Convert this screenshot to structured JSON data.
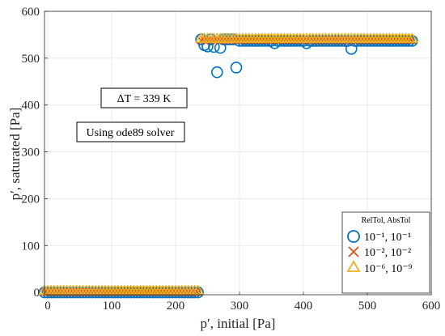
{
  "chart_data": {
    "type": "scatter",
    "xlabel": "p′, initial [Pa]",
    "ylabel": "p′, saturated [Pa]",
    "xlim": [
      -5,
      600
    ],
    "ylim": [
      -5,
      600
    ],
    "xticks": [
      0,
      100,
      200,
      300,
      400,
      500,
      600
    ],
    "yticks": [
      0,
      100,
      200,
      300,
      400,
      500,
      600
    ],
    "grid": true,
    "legend_position": "bottom-right",
    "legend_title": "RelTol,   AbsTol",
    "annotations": [
      "ΔT = 339 K",
      "Using ode89 solver"
    ],
    "series": [
      {
        "name": "10⁻¹, 10⁻¹",
        "marker": "circle",
        "color": "#0072BD",
        "x": [
          -5,
          0,
          5,
          10,
          15,
          20,
          25,
          30,
          35,
          40,
          45,
          50,
          55,
          60,
          65,
          70,
          75,
          80,
          85,
          90,
          95,
          100,
          105,
          110,
          115,
          120,
          125,
          130,
          135,
          140,
          145,
          150,
          155,
          160,
          165,
          170,
          175,
          180,
          185,
          190,
          195,
          200,
          205,
          210,
          215,
          220,
          225,
          230,
          235,
          240,
          245,
          250,
          255,
          260,
          265,
          270,
          275,
          280,
          285,
          290,
          295,
          300,
          305,
          310,
          315,
          320,
          325,
          330,
          335,
          340,
          345,
          350,
          355,
          360,
          365,
          370,
          375,
          380,
          385,
          390,
          395,
          400,
          405,
          410,
          415,
          420,
          425,
          430,
          435,
          440,
          445,
          450,
          455,
          460,
          465,
          470,
          475,
          480,
          485,
          490,
          495,
          500,
          505,
          510,
          515,
          520,
          525,
          530,
          535,
          540,
          545,
          550,
          555,
          560,
          565,
          570
        ],
        "y": [
          0,
          0,
          0,
          0,
          0,
          0,
          0,
          0,
          0,
          0,
          0,
          0,
          0,
          0,
          0,
          0,
          0,
          0,
          0,
          0,
          0,
          0,
          0,
          0,
          0,
          0,
          0,
          0,
          0,
          0,
          0,
          0,
          0,
          0,
          0,
          0,
          0,
          0,
          0,
          0,
          0,
          0,
          0,
          0,
          0,
          0,
          0,
          0,
          0,
          540,
          528,
          525,
          540,
          524,
          470,
          522,
          540,
          540,
          540,
          540,
          480,
          537,
          537,
          537,
          537,
          537,
          537,
          537,
          537,
          537,
          537,
          537,
          532,
          537,
          537,
          537,
          537,
          537,
          537,
          537,
          537,
          537,
          532,
          537,
          537,
          537,
          537,
          537,
          537,
          537,
          537,
          537,
          537,
          537,
          537,
          537,
          520,
          537,
          537,
          537,
          537,
          537,
          537,
          537,
          537,
          537,
          537,
          537,
          537,
          537,
          537,
          537,
          537,
          537,
          537,
          537
        ]
      },
      {
        "name": "10⁻², 10⁻²",
        "marker": "x",
        "color": "#D95319",
        "x": [
          -5,
          0,
          5,
          10,
          15,
          20,
          25,
          30,
          35,
          40,
          45,
          50,
          55,
          60,
          65,
          70,
          75,
          80,
          85,
          90,
          95,
          100,
          105,
          110,
          115,
          120,
          125,
          130,
          135,
          140,
          145,
          150,
          155,
          160,
          165,
          170,
          175,
          180,
          185,
          190,
          195,
          200,
          205,
          210,
          215,
          220,
          225,
          230,
          235,
          240,
          245,
          250,
          255,
          260,
          265,
          270,
          275,
          280,
          285,
          290,
          295,
          300,
          305,
          310,
          315,
          320,
          325,
          330,
          335,
          340,
          345,
          350,
          355,
          360,
          365,
          370,
          375,
          380,
          385,
          390,
          395,
          400,
          405,
          410,
          415,
          420,
          425,
          430,
          435,
          440,
          445,
          450,
          455,
          460,
          465,
          470,
          475,
          480,
          485,
          490,
          495,
          500,
          505,
          510,
          515,
          520,
          525,
          530,
          535,
          540,
          545,
          550,
          555,
          560,
          565,
          570
        ],
        "y": [
          0,
          0,
          0,
          0,
          0,
          0,
          0,
          0,
          0,
          0,
          0,
          0,
          0,
          0,
          0,
          0,
          0,
          0,
          0,
          0,
          0,
          0,
          0,
          0,
          0,
          0,
          0,
          0,
          0,
          0,
          0,
          0,
          0,
          0,
          0,
          0,
          0,
          0,
          0,
          0,
          0,
          0,
          0,
          0,
          0,
          0,
          0,
          0,
          0,
          538,
          538,
          538,
          538,
          538,
          538,
          538,
          538,
          538,
          538,
          538,
          538,
          538,
          538,
          538,
          538,
          538,
          538,
          538,
          538,
          538,
          538,
          538,
          538,
          538,
          538,
          538,
          538,
          538,
          538,
          538,
          538,
          538,
          538,
          538,
          538,
          538,
          538,
          538,
          538,
          538,
          538,
          538,
          538,
          538,
          538,
          538,
          538,
          538,
          538,
          538,
          538,
          538,
          538,
          538,
          538,
          538,
          538,
          538,
          538,
          538,
          538,
          538,
          538,
          538,
          538,
          538
        ]
      },
      {
        "name": "10⁻⁶, 10⁻⁹",
        "marker": "triangle",
        "color": "#EDB120",
        "x": [
          -5,
          0,
          5,
          10,
          15,
          20,
          25,
          30,
          35,
          40,
          45,
          50,
          55,
          60,
          65,
          70,
          75,
          80,
          85,
          90,
          95,
          100,
          105,
          110,
          115,
          120,
          125,
          130,
          135,
          140,
          145,
          150,
          155,
          160,
          165,
          170,
          175,
          180,
          185,
          190,
          195,
          200,
          205,
          210,
          215,
          220,
          225,
          230,
          235,
          240,
          245,
          250,
          255,
          260,
          265,
          270,
          275,
          280,
          285,
          290,
          295,
          300,
          305,
          310,
          315,
          320,
          325,
          330,
          335,
          340,
          345,
          350,
          355,
          360,
          365,
          370,
          375,
          380,
          385,
          390,
          395,
          400,
          405,
          410,
          415,
          420,
          425,
          430,
          435,
          440,
          445,
          450,
          455,
          460,
          465,
          470,
          475,
          480,
          485,
          490,
          495,
          500,
          505,
          510,
          515,
          520,
          525,
          530,
          535,
          540,
          545,
          550,
          555,
          560,
          565,
          570
        ],
        "y": [
          3,
          3,
          3,
          3,
          3,
          3,
          3,
          3,
          3,
          3,
          3,
          3,
          3,
          3,
          3,
          3,
          3,
          3,
          3,
          3,
          3,
          3,
          3,
          3,
          3,
          3,
          3,
          3,
          3,
          3,
          3,
          3,
          3,
          3,
          3,
          3,
          3,
          3,
          3,
          3,
          3,
          3,
          3,
          3,
          3,
          3,
          3,
          3,
          3,
          541,
          541,
          541,
          541,
          541,
          541,
          541,
          541,
          541,
          541,
          541,
          541,
          541,
          541,
          541,
          541,
          541,
          541,
          541,
          541,
          541,
          541,
          541,
          541,
          541,
          541,
          541,
          541,
          541,
          541,
          541,
          541,
          541,
          541,
          541,
          541,
          541,
          541,
          541,
          541,
          541,
          541,
          541,
          541,
          541,
          541,
          541,
          541,
          541,
          541,
          541,
          541,
          541,
          541,
          541,
          541,
          541,
          541,
          541,
          541,
          541,
          541,
          541,
          541,
          541,
          541,
          541
        ]
      }
    ]
  },
  "colors": {
    "grid": "#e6e6e6",
    "axes": "#262626",
    "series": [
      "#0072BD",
      "#D95319",
      "#EDB120"
    ]
  }
}
